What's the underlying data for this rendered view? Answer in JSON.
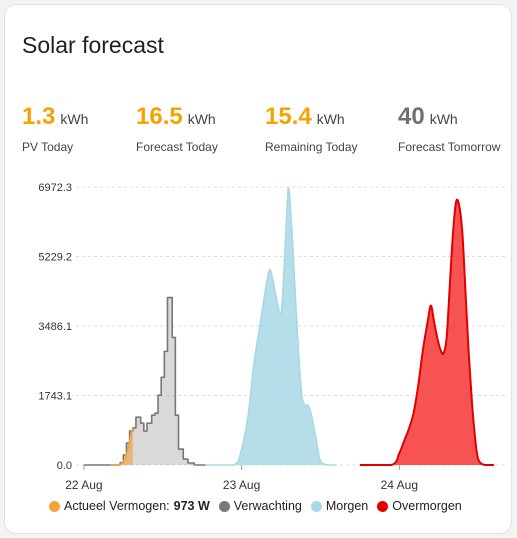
{
  "card": {
    "title": "Solar forecast"
  },
  "stats": [
    {
      "value": "1.3",
      "unit": "kWh",
      "label": "PV Today",
      "color": "#f4a300"
    },
    {
      "value": "16.5",
      "unit": "kWh",
      "label": "Forecast Today",
      "color": "#f4a300"
    },
    {
      "value": "15.4",
      "unit": "kWh",
      "label": "Remaining Today",
      "color": "#f4a300"
    },
    {
      "value": "40",
      "unit": "kWh",
      "label": "Forecast Tomorrow",
      "color": "#707070"
    }
  ],
  "legend": {
    "actual_label": "Actueel Vermogen:",
    "actual_value": "973 W",
    "forecast_label": "Verwachting",
    "tomorrow_label": "Morgen",
    "overmorrow_label": "Overmorgen"
  },
  "chart_data": {
    "type": "area",
    "y_ticks": [
      "6972.3",
      "5229.2",
      "3486.1",
      "1743.1",
      "0.0"
    ],
    "x_ticks": [
      "22 Aug",
      "23 Aug",
      "24 Aug"
    ],
    "ylim": [
      0,
      6972.3
    ],
    "xlim": [
      21.95,
      24.67
    ],
    "grid": true,
    "legend_position": "bottom",
    "series": [
      {
        "name": "Actueel Vermogen",
        "color": "#f4a23a",
        "fill": "rgba(233,170,90,0.75)",
        "style": "solid",
        "points": [
          [
            22.17,
            0
          ],
          [
            22.23,
            0
          ],
          [
            22.26,
            150
          ],
          [
            22.28,
            400
          ],
          [
            22.3,
            800
          ],
          [
            22.31,
            930
          ]
        ]
      },
      {
        "name": "Verwachting",
        "color": "#777777",
        "fill": "rgba(170,170,170,0.45)",
        "style": "step",
        "points": [
          [
            22.0,
            0
          ],
          [
            22.17,
            0
          ],
          [
            22.23,
            60
          ],
          [
            22.25,
            250
          ],
          [
            22.27,
            550
          ],
          [
            22.29,
            850
          ],
          [
            22.31,
            930
          ],
          [
            22.33,
            1200
          ],
          [
            22.36,
            1050
          ],
          [
            22.38,
            850
          ],
          [
            22.4,
            1050
          ],
          [
            22.43,
            1250
          ],
          [
            22.45,
            1300
          ],
          [
            22.47,
            1750
          ],
          [
            22.49,
            2200
          ],
          [
            22.51,
            2850
          ],
          [
            22.53,
            4200
          ],
          [
            22.56,
            3200
          ],
          [
            22.58,
            1250
          ],
          [
            22.6,
            400
          ],
          [
            22.63,
            150
          ],
          [
            22.66,
            50
          ],
          [
            22.7,
            0
          ],
          [
            22.77,
            0
          ]
        ]
      },
      {
        "name": "Morgen",
        "color": "#a8d8e6",
        "fill": "rgba(168,216,230,0.85)",
        "style": "smooth",
        "points": [
          [
            22.77,
            0
          ],
          [
            22.95,
            0
          ],
          [
            23.0,
            400
          ],
          [
            23.04,
            1200
          ],
          [
            23.06,
            1900
          ],
          [
            23.08,
            2600
          ],
          [
            23.12,
            3600
          ],
          [
            23.16,
            4600
          ],
          [
            23.18,
            4900
          ],
          [
            23.2,
            4600
          ],
          [
            23.22,
            4200
          ],
          [
            23.25,
            3800
          ],
          [
            23.27,
            5000
          ],
          [
            23.29,
            6600
          ],
          [
            23.3,
            6900
          ],
          [
            23.32,
            5800
          ],
          [
            23.34,
            4300
          ],
          [
            23.36,
            2900
          ],
          [
            23.38,
            1800
          ],
          [
            23.4,
            1500
          ],
          [
            23.42,
            1500
          ],
          [
            23.44,
            1300
          ],
          [
            23.47,
            700
          ],
          [
            23.5,
            100
          ],
          [
            23.55,
            0
          ],
          [
            23.6,
            0
          ]
        ]
      },
      {
        "name": "Overmorgen",
        "color": "#e00000",
        "fill": "rgba(245,40,40,0.8)",
        "style": "smooth",
        "points": [
          [
            23.75,
            0
          ],
          [
            23.95,
            0
          ],
          [
            24.0,
            300
          ],
          [
            24.03,
            600
          ],
          [
            24.06,
            900
          ],
          [
            24.09,
            1300
          ],
          [
            24.12,
            2000
          ],
          [
            24.15,
            2900
          ],
          [
            24.18,
            3600
          ],
          [
            24.2,
            4000
          ],
          [
            24.22,
            3600
          ],
          [
            24.24,
            3200
          ],
          [
            24.26,
            2900
          ],
          [
            24.28,
            2800
          ],
          [
            24.3,
            3200
          ],
          [
            24.32,
            4500
          ],
          [
            24.34,
            5800
          ],
          [
            24.36,
            6600
          ],
          [
            24.38,
            6500
          ],
          [
            24.4,
            5800
          ],
          [
            24.42,
            4300
          ],
          [
            24.44,
            2800
          ],
          [
            24.46,
            1600
          ],
          [
            24.48,
            700
          ],
          [
            24.5,
            150
          ],
          [
            24.54,
            0
          ],
          [
            24.6,
            0
          ]
        ]
      }
    ]
  }
}
